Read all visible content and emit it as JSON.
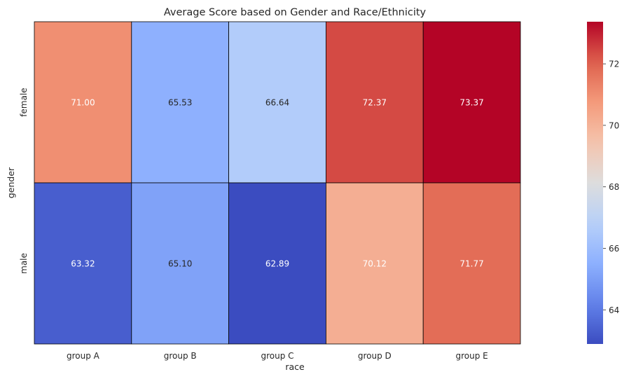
{
  "chart_data": {
    "type": "heatmap",
    "title": "Average Score based on Gender and Race/Ethnicity",
    "xlabel": "race",
    "ylabel": "gender",
    "x_categories": [
      "group A",
      "group B",
      "group C",
      "group D",
      "group E"
    ],
    "y_categories": [
      "female",
      "male"
    ],
    "values": [
      [
        71.0,
        65.53,
        66.64,
        72.37,
        73.37
      ],
      [
        63.32,
        65.1,
        62.89,
        70.12,
        71.77
      ]
    ],
    "value_labels": [
      [
        "71.00",
        "65.53",
        "66.64",
        "72.37",
        "73.37"
      ],
      [
        "63.32",
        "65.10",
        "62.89",
        "70.12",
        "71.77"
      ]
    ],
    "colormap": "coolwarm",
    "vmin": 62.89,
    "vmax": 73.37,
    "colorbar_ticks": [
      64,
      66,
      68,
      70,
      72
    ],
    "cell_border_color": "#000000",
    "annotation_text_dark": "#262626",
    "annotation_text_light": "#ffffff"
  }
}
